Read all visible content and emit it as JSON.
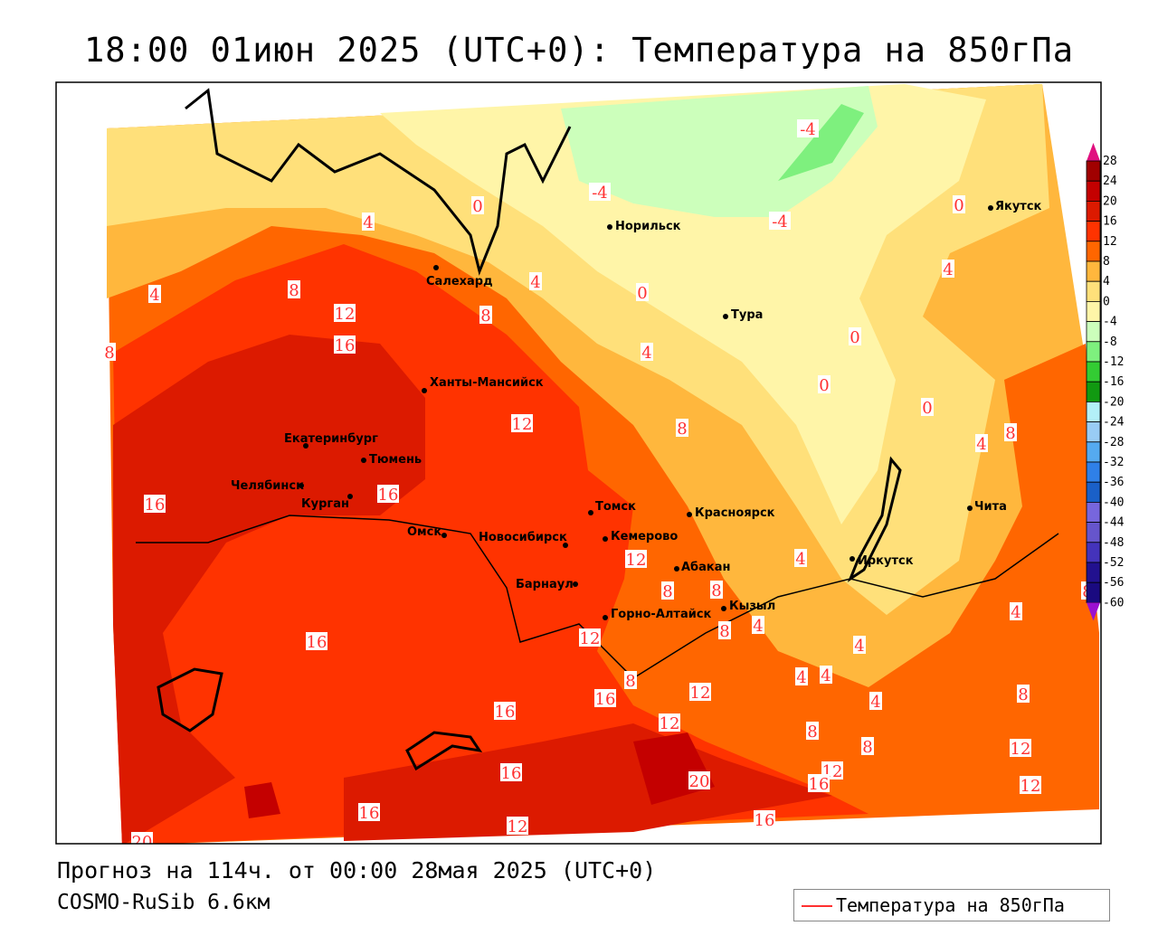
{
  "title": "18:00 01июн 2025 (UTC+0): Температура на 850гПа",
  "footer": {
    "forecast": "Прогноз на 114ч. от 00:00 28мая 2025 (UTC+0)",
    "model": "COSMO-RuSib 6.6км",
    "legend_label": "Температура на 850гПа",
    "legend_color": "#ff3030"
  },
  "cities": [
    "Норильск",
    "Якутск",
    "Салехард",
    "Тура",
    "Ханты-Мансийск",
    "Екатеринбург",
    "Тюмень",
    "Челябинск",
    "Курган",
    "Омск",
    "Новосибирск",
    "Томск",
    "Кемерово",
    "Красноярск",
    "Абакан",
    "Барнаул",
    "Горно-Алтайск",
    "Кызыл",
    "Иркутск",
    "Чита"
  ],
  "contour_labels": [
    "-4",
    "-4",
    "0",
    "4",
    "-4",
    "0",
    "4",
    "4",
    "8",
    "4",
    "0",
    "8",
    "12",
    "16",
    "8",
    "4",
    "0",
    "0",
    "0",
    "12",
    "8",
    "8",
    "4",
    "16",
    "16",
    "12",
    "4",
    "8",
    "8",
    "8",
    "4",
    "12",
    "8",
    "4",
    "4",
    "16",
    "4",
    "4",
    "8",
    "16",
    "12",
    "4",
    "8",
    "16",
    "12",
    "8",
    "8",
    "12",
    "16",
    "12",
    "20",
    "16",
    "12",
    "16",
    "12",
    "16",
    "20"
  ],
  "colorbar": {
    "labels": [
      "28",
      "24",
      "20",
      "16",
      "12",
      "8",
      "4",
      "0",
      "-4",
      "-8",
      "-12",
      "-16",
      "-20",
      "-24",
      "-28",
      "-32",
      "-36",
      "-40",
      "-44",
      "-48",
      "-52",
      "-56",
      "-60"
    ],
    "colors": [
      "#a00000",
      "#c40000",
      "#dc1a00",
      "#ff3300",
      "#ff6600",
      "#ffb73d",
      "#ffe07a",
      "#fff5a8",
      "#ccffbb",
      "#7ef07e",
      "#33cc33",
      "#119911",
      "#b3f0f8",
      "#99ccf5",
      "#55aaf0",
      "#2f80e8",
      "#1a60c8",
      "#7766dd",
      "#6655cc",
      "#4433bb",
      "#22118f",
      "#1a0a80"
    ],
    "top_arrow_color": "#e0107f",
    "bottom_arrow_color": "#9a10d0"
  }
}
